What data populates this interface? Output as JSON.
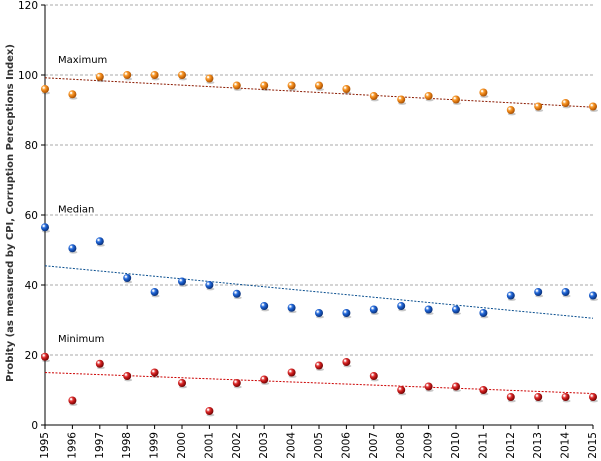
{
  "chart_data": {
    "type": "scatter",
    "title": "",
    "xlabel": "",
    "ylabel": "Probity (as measured by CPI, Corruption Perceptions Index)",
    "x": [
      1995,
      1996,
      1997,
      1998,
      1999,
      2000,
      2001,
      2002,
      2003,
      2004,
      2005,
      2006,
      2007,
      2008,
      2009,
      2010,
      2011,
      2012,
      2013,
      2014,
      2015
    ],
    "xlim": [
      1995,
      2015
    ],
    "ylim": [
      0,
      120
    ],
    "yticks": [
      0,
      20,
      40,
      60,
      80,
      100,
      120
    ],
    "grid": "horizontal dashed",
    "series": [
      {
        "name": "Maximum",
        "color": "#f28a1a",
        "trend_color": "#8b1a00",
        "values": [
          96,
          94.5,
          99.5,
          100,
          100,
          100,
          99,
          97,
          97,
          97,
          97,
          96,
          94,
          93,
          94,
          93,
          95,
          90,
          91,
          92,
          91
        ],
        "trend": [
          99.2,
          90.8
        ]
      },
      {
        "name": "Median",
        "color": "#1a5fd0",
        "trend_color": "#0a4f8f",
        "values": [
          56.5,
          50.5,
          52.5,
          42,
          38,
          41,
          40,
          37.5,
          34,
          33.5,
          32,
          32,
          33,
          34,
          33,
          33,
          32,
          37,
          38,
          38,
          37
        ],
        "trend": [
          45.5,
          30.5
        ]
      },
      {
        "name": "Minimum",
        "color": "#d42020",
        "trend_color": "#cc0000",
        "values": [
          19.5,
          7,
          17.5,
          14,
          15,
          12,
          4,
          12,
          13,
          15,
          17,
          18,
          14,
          10,
          11,
          11,
          10,
          8,
          8,
          8,
          8
        ],
        "trend": [
          15,
          9
        ]
      }
    ]
  }
}
